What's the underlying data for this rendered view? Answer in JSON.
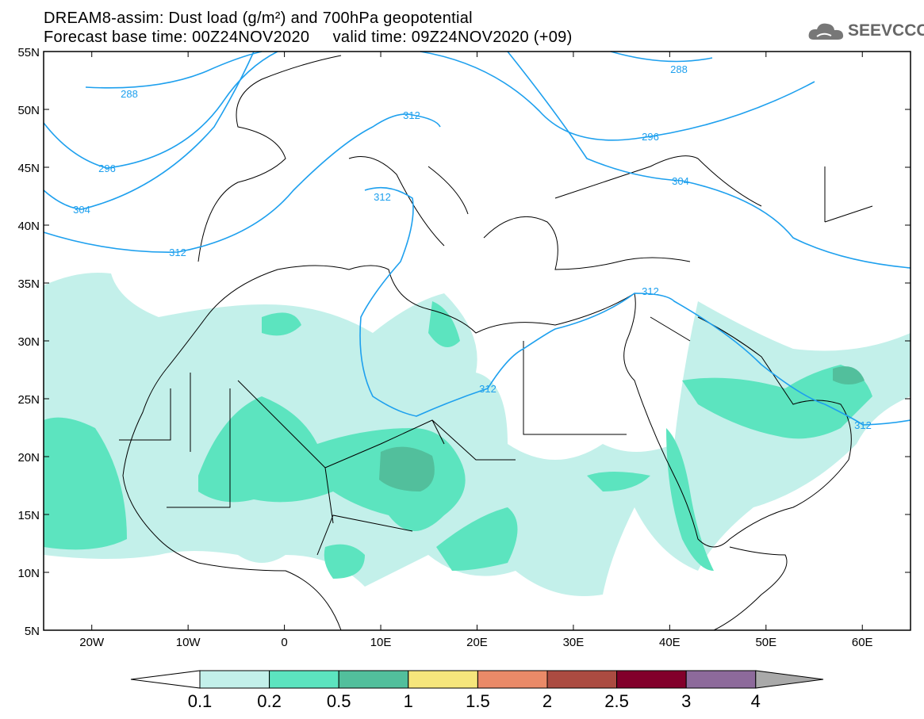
{
  "header": {
    "title": "DREAM8-assim: Dust load (g/m²) and 700hPa geopotential",
    "subtitle": "Forecast base time: 00Z24NOV2020     valid time: 09Z24NOV2020 (+09)"
  },
  "logo": {
    "text": "SEEVCCC"
  },
  "axes": {
    "lat_labels": [
      "55N",
      "50N",
      "45N",
      "40N",
      "35N",
      "30N",
      "25N",
      "20N",
      "15N",
      "10N",
      "5N"
    ],
    "lon_labels": [
      "20W",
      "10W",
      "0",
      "10E",
      "20E",
      "30E",
      "40E",
      "50E",
      "60E"
    ]
  },
  "contours": {
    "labels": [
      "288",
      "288",
      "296",
      "296",
      "304",
      "304",
      "312",
      "312",
      "312",
      "312",
      "312",
      "312"
    ],
    "color": "#1ea0ee"
  },
  "colorbar": {
    "ticks": [
      "0.1",
      "0.2",
      "0.5",
      "1",
      "1.5",
      "2",
      "2.5",
      "3",
      "4"
    ],
    "colors": [
      "#c3f0ea",
      "#5ce4bf",
      "#52bf9c",
      "#f6e67c",
      "#ea8a68",
      "#ab4b41",
      "#82002b",
      "#8d6a9b",
      "#a9a9a9"
    ]
  }
}
